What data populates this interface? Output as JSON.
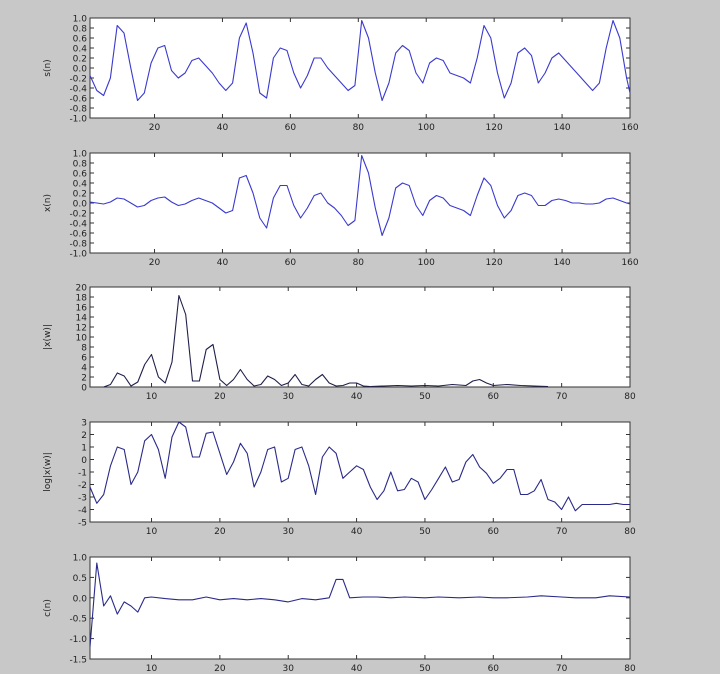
{
  "chart_data": [
    {
      "type": "line",
      "ylabel": "s(n)",
      "xlim": [
        1,
        160
      ],
      "ylim": [
        -1.0,
        1.0
      ],
      "x_ticks": [
        20,
        40,
        60,
        80,
        100,
        120,
        140,
        160
      ],
      "y_ticks": [
        -1.0,
        -0.8,
        -0.6,
        -0.4,
        -0.2,
        0.0,
        0.2,
        0.4,
        0.6,
        0.8,
        1.0
      ],
      "x_tick_labels": [
        "20",
        "40",
        "60",
        "80",
        "100",
        "120",
        "140",
        "160"
      ],
      "y_tick_labels": [
        "-1.0",
        "-0.8",
        "-0.6",
        "-0.4",
        "-0.2",
        "0.0",
        "0.2",
        "0.4",
        "0.6",
        "0.8",
        "1.0"
      ],
      "color": "#3a3acf",
      "series": [
        {
          "x": [
            1,
            3,
            5,
            7,
            9,
            11,
            13,
            15,
            17,
            19,
            21,
            23,
            25,
            27,
            29,
            31,
            33,
            35,
            37,
            39,
            41,
            43,
            45,
            47,
            49,
            51,
            53,
            55,
            57,
            59,
            61,
            63,
            65,
            67,
            69,
            71,
            73,
            75,
            77,
            79,
            81,
            83,
            85,
            87,
            89,
            91,
            93,
            95,
            97,
            99,
            101,
            103,
            105,
            107,
            109,
            111,
            113,
            115,
            117,
            119,
            121,
            123,
            125,
            127,
            129,
            131,
            133,
            135,
            137,
            139,
            141,
            143,
            145,
            147,
            149,
            151,
            153,
            155,
            157,
            159,
            160
          ],
          "values": [
            -0.15,
            -0.45,
            -0.55,
            -0.2,
            0.85,
            0.7,
            0.0,
            -0.65,
            -0.5,
            0.1,
            0.4,
            0.45,
            -0.05,
            -0.2,
            -0.1,
            0.15,
            0.2,
            0.05,
            -0.1,
            -0.3,
            -0.45,
            -0.3,
            0.6,
            0.9,
            0.3,
            -0.5,
            -0.6,
            0.2,
            0.4,
            0.35,
            -0.1,
            -0.4,
            -0.15,
            0.2,
            0.2,
            0.0,
            -0.15,
            -0.3,
            -0.45,
            -0.35,
            0.95,
            0.6,
            -0.1,
            -0.65,
            -0.3,
            0.3,
            0.45,
            0.35,
            -0.1,
            -0.3,
            0.1,
            0.2,
            0.15,
            -0.1,
            -0.15,
            -0.2,
            -0.3,
            0.2,
            0.85,
            0.6,
            -0.1,
            -0.6,
            -0.3,
            0.3,
            0.4,
            0.25,
            -0.3,
            -0.1,
            0.2,
            0.3,
            0.15,
            0.0,
            -0.15,
            -0.3,
            -0.45,
            -0.3,
            0.4,
            0.95,
            0.6,
            -0.2,
            -0.5
          ]
        }
      ]
    },
    {
      "type": "line",
      "ylabel": "x(n)",
      "xlim": [
        1,
        160
      ],
      "ylim": [
        -1.0,
        1.0
      ],
      "x_ticks": [
        20,
        40,
        60,
        80,
        100,
        120,
        140,
        160
      ],
      "y_ticks": [
        -1.0,
        -0.8,
        -0.6,
        -0.4,
        -0.2,
        0.0,
        0.2,
        0.4,
        0.6,
        0.8,
        1.0
      ],
      "x_tick_labels": [
        "20",
        "40",
        "60",
        "80",
        "100",
        "120",
        "140",
        "160"
      ],
      "y_tick_labels": [
        "-1.0",
        "-0.8",
        "-0.6",
        "-0.4",
        "-0.2",
        "0.0",
        "0.2",
        "0.4",
        "0.6",
        "0.8",
        "1.0"
      ],
      "color": "#3a3acf",
      "series": [
        {
          "x": [
            1,
            3,
            5,
            7,
            9,
            11,
            13,
            15,
            17,
            19,
            21,
            23,
            25,
            27,
            29,
            31,
            33,
            35,
            37,
            39,
            41,
            43,
            45,
            47,
            49,
            51,
            53,
            55,
            57,
            59,
            61,
            63,
            65,
            67,
            69,
            71,
            73,
            75,
            77,
            79,
            81,
            83,
            85,
            87,
            89,
            91,
            93,
            95,
            97,
            99,
            101,
            103,
            105,
            107,
            109,
            111,
            113,
            115,
            117,
            119,
            121,
            123,
            125,
            127,
            129,
            131,
            133,
            135,
            137,
            139,
            141,
            143,
            145,
            147,
            149,
            151,
            153,
            155,
            157,
            159,
            160
          ],
          "values": [
            0.02,
            0.0,
            -0.02,
            0.02,
            0.1,
            0.08,
            0.0,
            -0.08,
            -0.05,
            0.05,
            0.1,
            0.12,
            0.02,
            -0.05,
            -0.02,
            0.05,
            0.1,
            0.05,
            0.0,
            -0.1,
            -0.2,
            -0.15,
            0.5,
            0.55,
            0.2,
            -0.3,
            -0.5,
            0.1,
            0.35,
            0.35,
            -0.05,
            -0.3,
            -0.1,
            0.15,
            0.2,
            0.0,
            -0.1,
            -0.25,
            -0.45,
            -0.35,
            0.95,
            0.6,
            -0.1,
            -0.65,
            -0.3,
            0.3,
            0.4,
            0.35,
            -0.05,
            -0.25,
            0.05,
            0.15,
            0.1,
            -0.05,
            -0.1,
            -0.15,
            -0.25,
            0.15,
            0.5,
            0.35,
            -0.05,
            -0.3,
            -0.15,
            0.15,
            0.2,
            0.15,
            -0.05,
            -0.05,
            0.05,
            0.08,
            0.05,
            0.0,
            0.0,
            -0.02,
            -0.02,
            0.0,
            0.08,
            0.1,
            0.05,
            0.0,
            -0.02
          ]
        }
      ]
    },
    {
      "type": "line",
      "ylabel": "|x(w)|",
      "xlim": [
        1,
        80
      ],
      "ylim": [
        0,
        20
      ],
      "x_ticks": [
        10,
        20,
        30,
        40,
        50,
        60,
        70,
        80
      ],
      "y_ticks": [
        0,
        2,
        4,
        6,
        8,
        10,
        12,
        14,
        16,
        18,
        20
      ],
      "x_tick_labels": [
        "10",
        "20",
        "30",
        "40",
        "50",
        "60",
        "70",
        "80"
      ],
      "y_tick_labels": [
        "0",
        "2",
        "4",
        "6",
        "8",
        "10",
        "12",
        "14",
        "16",
        "18",
        "20"
      ],
      "color": "#1f1f4a",
      "series": [
        {
          "x": [
            3,
            4,
            5,
            6,
            7,
            8,
            9,
            10,
            11,
            12,
            13,
            14,
            15,
            16,
            17,
            18,
            19,
            20,
            21,
            22,
            23,
            24,
            25,
            26,
            27,
            28,
            29,
            30,
            31,
            32,
            33,
            34,
            35,
            36,
            37,
            38,
            39,
            40,
            41,
            42
          ],
          "values": [
            0.0,
            0.5,
            2.8,
            2.2,
            0.2,
            1.0,
            4.5,
            6.5,
            2.0,
            0.8,
            5.0,
            18.3,
            14.5,
            1.2,
            1.2,
            7.5,
            8.5,
            1.5,
            0.3,
            1.5,
            3.5,
            1.5,
            0.2,
            0.5,
            2.2,
            1.5,
            0.3,
            0.8,
            2.5,
            0.5,
            0.2,
            1.5,
            2.5,
            0.8,
            0.2,
            0.3,
            0.8,
            0.8,
            0.2,
            0.1
          ]
        },
        {
          "x": [
            42,
            44,
            46,
            48,
            50,
            52,
            54,
            56,
            57,
            58,
            59,
            60,
            62,
            64,
            66,
            68
          ],
          "values": [
            0.1,
            0.2,
            0.3,
            0.2,
            0.3,
            0.2,
            0.5,
            0.3,
            1.2,
            1.5,
            0.8,
            0.3,
            0.5,
            0.3,
            0.2,
            0.1
          ]
        }
      ]
    },
    {
      "type": "line",
      "ylabel": "log|x(w)|",
      "xlim": [
        1,
        80
      ],
      "ylim": [
        -5,
        3
      ],
      "x_ticks": [
        10,
        20,
        30,
        40,
        50,
        60,
        70,
        80
      ],
      "y_ticks": [
        -5,
        -4,
        -3,
        -2,
        -1,
        0,
        1,
        2,
        3
      ],
      "x_tick_labels": [
        "10",
        "20",
        "30",
        "40",
        "50",
        "60",
        "70",
        "80"
      ],
      "y_tick_labels": [
        "-5",
        "-4",
        "-3",
        "-2",
        "-1",
        "0",
        "1",
        "2",
        "3"
      ],
      "color": "#2a2a8a",
      "series": [
        {
          "x": [
            1,
            2,
            3,
            4,
            5,
            6,
            7,
            8,
            9,
            10,
            11,
            12,
            13,
            14,
            15,
            16,
            17,
            18,
            19,
            20,
            21,
            22,
            23,
            24,
            25,
            26,
            27,
            28,
            29,
            30,
            31,
            32,
            33,
            34,
            35,
            36,
            37,
            38,
            39,
            40,
            41,
            42,
            43,
            44,
            45,
            46,
            47,
            48,
            49,
            50,
            51,
            52,
            53,
            54,
            55,
            56,
            57,
            58,
            59,
            60,
            61,
            62,
            63,
            64,
            65,
            66,
            67,
            68,
            69,
            70,
            71,
            72,
            73,
            74,
            75,
            76,
            77,
            78,
            79,
            80
          ],
          "values": [
            -2.2,
            -3.5,
            -2.8,
            -0.5,
            1.0,
            0.8,
            -2.0,
            -1.0,
            1.5,
            2.0,
            0.8,
            -1.5,
            1.8,
            3.0,
            2.6,
            0.2,
            0.2,
            2.1,
            2.2,
            0.5,
            -1.2,
            -0.2,
            1.3,
            0.5,
            -2.2,
            -1.0,
            0.8,
            1.0,
            -1.8,
            -1.5,
            0.8,
            1.0,
            -0.5,
            -2.8,
            0.2,
            1.0,
            0.5,
            -1.5,
            -1.0,
            -0.5,
            -0.8,
            -2.2,
            -3.2,
            -2.5,
            -1.0,
            -2.5,
            -2.4,
            -1.5,
            -1.8,
            -3.2,
            -2.4,
            -1.5,
            -0.6,
            -1.8,
            -1.6,
            -0.2,
            0.4,
            -0.6,
            -1.1,
            -1.9,
            -1.5,
            -0.8,
            -0.8,
            -2.8,
            -2.8,
            -2.5,
            -1.6,
            -3.2,
            -3.4,
            -4.0,
            -3.0,
            -4.1,
            -3.6,
            -3.6,
            -3.6,
            -3.6,
            -3.6,
            -3.5,
            -3.6,
            -3.6
          ]
        }
      ]
    },
    {
      "type": "line",
      "ylabel": "c(n)",
      "xlim": [
        1,
        80
      ],
      "ylim": [
        -1.5,
        1.0
      ],
      "x_ticks": [
        10,
        20,
        30,
        40,
        50,
        60,
        70,
        80
      ],
      "y_ticks": [
        -1.5,
        -1.0,
        -0.5,
        0.0,
        0.5,
        1.0
      ],
      "x_tick_labels": [
        "10",
        "20",
        "30",
        "40",
        "50",
        "60",
        "70",
        "80"
      ],
      "y_tick_labels": [
        "-1.5",
        "-1.0",
        "-0.5",
        "0.0",
        "0.5",
        "1.0"
      ],
      "color": "#2a2a8a",
      "series": [
        {
          "x": [
            1,
            2,
            3,
            4,
            5,
            6,
            7,
            8,
            9,
            10,
            12,
            14,
            16,
            18,
            20,
            22,
            24,
            26,
            28,
            30,
            32,
            34,
            36,
            37,
            38,
            39,
            41,
            43,
            45,
            47,
            50,
            52,
            55,
            58,
            60,
            62,
            65,
            67,
            70,
            72,
            75,
            77,
            80
          ],
          "values": [
            -1.2,
            0.85,
            -0.2,
            0.05,
            -0.4,
            -0.1,
            -0.2,
            -0.35,
            0.0,
            0.02,
            -0.02,
            -0.05,
            -0.05,
            0.02,
            -0.05,
            -0.02,
            -0.05,
            -0.02,
            -0.05,
            -0.1,
            -0.02,
            -0.05,
            0.0,
            0.45,
            0.45,
            0.0,
            0.02,
            0.02,
            0.0,
            0.02,
            0.0,
            0.02,
            0.0,
            0.02,
            0.0,
            0.0,
            0.02,
            0.05,
            0.02,
            0.0,
            0.0,
            0.05,
            0.02
          ]
        }
      ]
    }
  ]
}
